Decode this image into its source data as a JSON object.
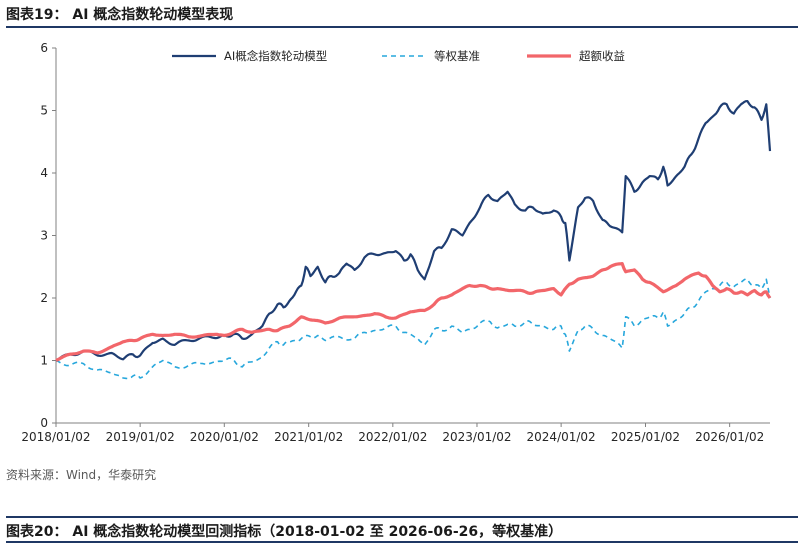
{
  "header": {
    "figure_title": "图表19：  AI 概念指数轮动模型表现",
    "source_note": "资料来源：Wind，华泰研究",
    "next_figure_title": "图表20：  AI 概念指数轮动模型回测指标（2018-01-02 至 2026-06-26，等权基准）"
  },
  "colors": {
    "model": "#1f3e73",
    "benchmark": "#27a7dc",
    "excess": "#f2666a",
    "rule": "#1f3864"
  },
  "chart_data": {
    "type": "line",
    "x_type": "date",
    "xlim": [
      "2018-01-02",
      "2026-06-26"
    ],
    "ylim": [
      0,
      6
    ],
    "yticks": [
      0,
      1,
      2,
      3,
      4,
      5,
      6
    ],
    "xtick_labels": [
      "2018/01/02",
      "2019/01/02",
      "2020/01/02",
      "2021/01/02",
      "2022/01/02",
      "2023/01/02",
      "2024/01/02",
      "2025/01/02",
      "2026/01/02"
    ],
    "xtick_dates": [
      "2018-01-02",
      "2019-01-02",
      "2020-01-02",
      "2021-01-02",
      "2022-01-02",
      "2023-01-02",
      "2024-01-02",
      "2025-01-02",
      "2026-01-02"
    ],
    "grid": false,
    "legend_position": "top",
    "series": [
      {
        "name": "AI概念指数轮动模型",
        "style": "solid",
        "x": [
          "2018-01-02",
          "2018-03-01",
          "2018-05-01",
          "2018-07-01",
          "2018-09-01",
          "2018-10-20",
          "2018-12-01",
          "2019-01-02",
          "2019-02-25",
          "2019-04-10",
          "2019-06-01",
          "2019-08-01",
          "2019-10-01",
          "2019-12-01",
          "2020-01-02",
          "2020-02-10",
          "2020-03-20",
          "2020-05-01",
          "2020-06-15",
          "2020-07-15",
          "2020-08-20",
          "2020-09-15",
          "2020-10-10",
          "2020-11-01",
          "2020-12-01",
          "2020-12-20",
          "2021-01-10",
          "2021-02-10",
          "2021-03-15",
          "2021-04-10",
          "2021-05-15",
          "2021-06-15",
          "2021-07-20",
          "2021-09-01",
          "2021-10-15",
          "2021-12-01",
          "2022-01-15",
          "2022-02-20",
          "2022-03-20",
          "2022-04-20",
          "2022-05-20",
          "2022-06-30",
          "2022-08-01",
          "2022-09-15",
          "2022-10-31",
          "2022-12-01",
          "2023-01-15",
          "2023-02-20",
          "2023-04-01",
          "2023-05-15",
          "2023-06-15",
          "2023-07-31",
          "2023-09-01",
          "2023-10-15",
          "2023-12-01",
          "2024-01-02",
          "2024-01-20",
          "2024-02-07",
          "2024-03-15",
          "2024-04-15",
          "2024-05-20",
          "2024-06-30",
          "2024-08-01",
          "2024-09-23",
          "2024-10-08",
          "2024-11-15",
          "2024-12-20",
          "2025-01-20",
          "2025-02-25",
          "2025-03-20",
          "2025-04-08",
          "2025-05-15",
          "2025-06-20",
          "2025-07-20",
          "2025-08-20",
          "2025-09-20",
          "2025-10-20",
          "2025-11-20",
          "2025-12-20",
          "2026-01-20",
          "2026-02-20",
          "2026-03-20",
          "2026-04-20",
          "2026-05-20",
          "2026-06-10",
          "2026-06-26"
        ],
        "y": [
          1.0,
          1.1,
          1.15,
          1.08,
          1.12,
          1.02,
          1.1,
          1.08,
          1.28,
          1.35,
          1.25,
          1.32,
          1.38,
          1.36,
          1.4,
          1.42,
          1.35,
          1.42,
          1.55,
          1.75,
          1.9,
          1.85,
          1.95,
          2.05,
          2.2,
          2.5,
          2.35,
          2.5,
          2.25,
          2.35,
          2.4,
          2.55,
          2.45,
          2.65,
          2.7,
          2.72,
          2.75,
          2.6,
          2.7,
          2.45,
          2.3,
          2.75,
          2.8,
          3.1,
          3.0,
          3.2,
          3.45,
          3.65,
          3.55,
          3.7,
          3.5,
          3.4,
          3.45,
          3.35,
          3.4,
          3.3,
          3.2,
          2.6,
          3.45,
          3.6,
          3.55,
          3.25,
          3.15,
          3.05,
          3.95,
          3.7,
          3.85,
          3.95,
          3.9,
          4.1,
          3.8,
          3.95,
          4.1,
          4.3,
          4.55,
          4.8,
          4.9,
          5.05,
          5.1,
          4.95,
          5.1,
          5.15,
          5.05,
          4.85,
          5.1,
          4.35
        ]
      },
      {
        "name": "等权基准",
        "style": "dashed",
        "x": [
          "2018-01-02",
          "2018-03-01",
          "2018-05-01",
          "2018-07-01",
          "2018-09-01",
          "2018-10-20",
          "2018-12-01",
          "2019-01-02",
          "2019-02-25",
          "2019-04-10",
          "2019-06-01",
          "2019-08-01",
          "2019-10-01",
          "2019-12-01",
          "2020-01-02",
          "2020-02-10",
          "2020-03-20",
          "2020-05-01",
          "2020-06-15",
          "2020-07-15",
          "2020-08-20",
          "2020-09-15",
          "2020-10-10",
          "2020-11-01",
          "2020-12-01",
          "2021-01-10",
          "2021-02-10",
          "2021-03-15",
          "2021-05-15",
          "2021-07-20",
          "2021-09-01",
          "2021-10-15",
          "2021-12-01",
          "2022-01-15",
          "2022-02-20",
          "2022-04-20",
          "2022-05-20",
          "2022-06-30",
          "2022-08-01",
          "2022-09-15",
          "2022-10-31",
          "2022-12-01",
          "2023-01-15",
          "2023-03-01",
          "2023-04-01",
          "2023-05-15",
          "2023-06-15",
          "2023-07-31",
          "2023-09-01",
          "2023-10-15",
          "2023-12-01",
          "2024-01-02",
          "2024-01-20",
          "2024-02-07",
          "2024-03-15",
          "2024-04-15",
          "2024-05-20",
          "2024-06-30",
          "2024-08-01",
          "2024-09-23",
          "2024-10-08",
          "2024-11-15",
          "2024-12-20",
          "2025-01-20",
          "2025-02-25",
          "2025-03-20",
          "2025-04-08",
          "2025-05-15",
          "2025-06-20",
          "2025-07-20",
          "2025-08-20",
          "2025-09-20",
          "2025-10-20",
          "2025-11-20",
          "2025-12-20",
          "2026-01-20",
          "2026-02-20",
          "2026-03-20",
          "2026-04-20",
          "2026-05-20",
          "2026-06-10",
          "2026-06-26"
        ],
        "y": [
          1.0,
          0.92,
          0.95,
          0.85,
          0.8,
          0.72,
          0.75,
          0.72,
          0.9,
          1.0,
          0.9,
          0.92,
          0.95,
          0.98,
          1.0,
          1.02,
          0.9,
          0.98,
          1.05,
          1.2,
          1.3,
          1.25,
          1.3,
          1.32,
          1.35,
          1.38,
          1.4,
          1.32,
          1.38,
          1.35,
          1.45,
          1.48,
          1.52,
          1.55,
          1.45,
          1.35,
          1.25,
          1.5,
          1.48,
          1.55,
          1.45,
          1.5,
          1.6,
          1.62,
          1.52,
          1.58,
          1.55,
          1.62,
          1.58,
          1.55,
          1.5,
          1.55,
          1.42,
          1.15,
          1.48,
          1.55,
          1.5,
          1.4,
          1.35,
          1.2,
          1.7,
          1.55,
          1.65,
          1.7,
          1.68,
          1.78,
          1.55,
          1.65,
          1.75,
          1.85,
          1.95,
          2.1,
          2.15,
          2.2,
          2.25,
          2.18,
          2.25,
          2.3,
          2.2,
          2.15,
          2.3,
          2.0
        ]
      },
      {
        "name": "超额收益",
        "style": "solid-thick",
        "x": [
          "2018-01-02",
          "2018-03-01",
          "2018-05-01",
          "2018-07-01",
          "2018-09-01",
          "2018-10-20",
          "2018-12-01",
          "2019-01-02",
          "2019-02-25",
          "2019-04-10",
          "2019-06-01",
          "2019-08-01",
          "2019-10-01",
          "2019-12-01",
          "2020-01-02",
          "2020-02-10",
          "2020-03-20",
          "2020-05-01",
          "2020-06-15",
          "2020-07-15",
          "2020-08-20",
          "2020-10-10",
          "2020-12-01",
          "2021-01-10",
          "2021-03-15",
          "2021-05-15",
          "2021-07-20",
          "2021-09-01",
          "2021-10-15",
          "2021-12-01",
          "2022-01-15",
          "2022-03-20",
          "2022-05-20",
          "2022-06-30",
          "2022-08-01",
          "2022-09-15",
          "2022-10-31",
          "2022-12-01",
          "2023-01-15",
          "2023-03-01",
          "2023-04-01",
          "2023-06-15",
          "2023-07-31",
          "2023-09-01",
          "2023-10-15",
          "2023-12-01",
          "2024-01-02",
          "2024-02-07",
          "2024-03-15",
          "2024-05-20",
          "2024-06-30",
          "2024-08-01",
          "2024-09-23",
          "2024-10-08",
          "2024-11-15",
          "2024-12-20",
          "2025-01-20",
          "2025-03-20",
          "2025-05-15",
          "2025-06-20",
          "2025-08-20",
          "2025-09-20",
          "2025-10-20",
          "2025-11-20",
          "2025-12-20",
          "2026-01-20",
          "2026-02-20",
          "2026-03-20",
          "2026-04-20",
          "2026-05-20",
          "2026-06-10",
          "2026-06-26"
        ],
        "y": [
          1.0,
          1.1,
          1.15,
          1.12,
          1.22,
          1.3,
          1.32,
          1.35,
          1.42,
          1.4,
          1.42,
          1.38,
          1.4,
          1.42,
          1.4,
          1.45,
          1.5,
          1.45,
          1.48,
          1.5,
          1.48,
          1.55,
          1.7,
          1.65,
          1.6,
          1.68,
          1.7,
          1.72,
          1.75,
          1.7,
          1.68,
          1.78,
          1.8,
          1.9,
          2.0,
          2.05,
          2.15,
          2.2,
          2.2,
          2.15,
          2.15,
          2.12,
          2.1,
          2.08,
          2.12,
          2.15,
          2.05,
          2.22,
          2.3,
          2.35,
          2.45,
          2.5,
          2.55,
          2.42,
          2.45,
          2.3,
          2.25,
          2.1,
          2.2,
          2.3,
          2.4,
          2.35,
          2.2,
          2.1,
          2.15,
          2.08,
          2.1,
          2.05,
          2.12,
          2.05,
          2.1,
          2.0
        ]
      }
    ]
  }
}
